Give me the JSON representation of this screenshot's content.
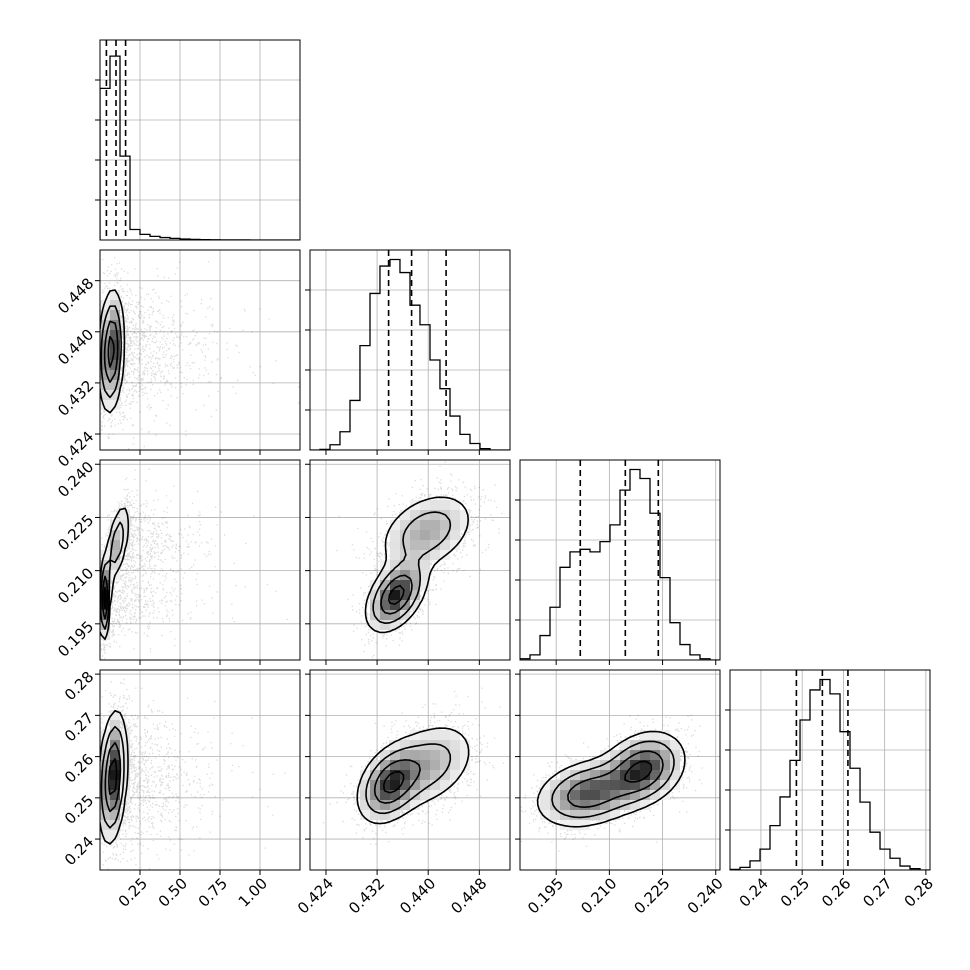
{
  "chart_data": {
    "type": "corner",
    "description_units": "parameter values in data units; no axis titles are printed",
    "params": [
      {
        "index": 0,
        "range": [
          0.0,
          1.25
        ],
        "ticks": [
          0.25,
          0.5,
          0.75,
          1.0
        ],
        "tick_labels": [
          "0.25",
          "0.50",
          "0.75",
          "1.00"
        ],
        "quantiles": [
          0.04,
          0.1,
          0.16
        ]
      },
      {
        "index": 1,
        "range": [
          0.4215,
          0.4528
        ],
        "ticks": [
          0.424,
          0.432,
          0.44,
          0.448
        ],
        "tick_labels": [
          "0.424",
          "0.432",
          "0.440",
          "0.448"
        ],
        "quantiles": [
          0.4338,
          0.4374,
          0.4428
        ]
      },
      {
        "index": 2,
        "range": [
          0.1848,
          0.2412
        ],
        "ticks": [
          0.195,
          0.21,
          0.225,
          0.24
        ],
        "tick_labels": [
          "0.195",
          "0.210",
          "0.225",
          "0.240"
        ],
        "quantiles": [
          0.2018,
          0.2145,
          0.2238
        ]
      },
      {
        "index": 3,
        "range": [
          0.2325,
          0.281
        ],
        "ticks": [
          0.24,
          0.25,
          0.26,
          0.27,
          0.28
        ],
        "tick_labels": [
          "0.24",
          "0.25",
          "0.26",
          "0.27",
          "0.28"
        ],
        "quantiles": [
          0.2486,
          0.2549,
          0.2611
        ]
      }
    ],
    "histograms": [
      {
        "param": 0,
        "bins": [
          0.0,
          0.0625,
          0.125,
          0.1875,
          0.25,
          0.3125,
          0.375,
          0.4375,
          0.5,
          0.5625,
          0.625,
          0.6875,
          0.75,
          0.8125,
          0.875,
          0.9375,
          1.0,
          1.0625,
          1.125,
          1.1875,
          1.25
        ],
        "counts": [
          1880,
          2280,
          1040,
          130,
          70,
          45,
          30,
          20,
          12,
          8,
          5,
          3,
          2,
          1,
          1,
          0,
          0,
          0,
          0,
          0
        ],
        "ylim": [
          0,
          2480
        ]
      },
      {
        "param": 1,
        "bins": [
          0.4215,
          0.42306,
          0.42463,
          0.42619,
          0.42776,
          0.42932,
          0.43089,
          0.43245,
          0.43402,
          0.43558,
          0.43715,
          0.43871,
          0.44028,
          0.44184,
          0.44341,
          0.44497,
          0.44654,
          0.4481,
          0.44967,
          0.45123,
          0.4528
        ],
        "counts": [
          0,
          5,
          40,
          140,
          380,
          800,
          1200,
          1410,
          1460,
          1360,
          1110,
          960,
          690,
          470,
          260,
          120,
          50,
          10,
          0,
          0
        ],
        "ylim": [
          0,
          1533
        ]
      },
      {
        "param": 2,
        "bins": [
          0.1848,
          0.18762,
          0.19044,
          0.19326,
          0.19608,
          0.1989,
          0.20172,
          0.20454,
          0.20736,
          0.21018,
          0.213,
          0.21582,
          0.21864,
          0.22146,
          0.22428,
          0.2271,
          0.22992,
          0.23274,
          0.23556,
          0.23838,
          0.2412
        ],
        "counts": [
          10,
          40,
          190,
          410,
          720,
          840,
          860,
          840,
          920,
          1050,
          1320,
          1480,
          1410,
          1140,
          640,
          290,
          120,
          40,
          10,
          0
        ],
        "ylim": [
          0,
          1554
        ]
      },
      {
        "param": 3,
        "bins": [
          0.2325,
          0.23493,
          0.23735,
          0.23978,
          0.2422,
          0.24463,
          0.24705,
          0.24948,
          0.2519,
          0.25433,
          0.25675,
          0.25918,
          0.2616,
          0.26403,
          0.26645,
          0.26888,
          0.2713,
          0.27373,
          0.27615,
          0.27858,
          0.281
        ],
        "counts": [
          5,
          20,
          70,
          160,
          340,
          560,
          840,
          1150,
          1380,
          1460,
          1350,
          1060,
          780,
          520,
          290,
          160,
          90,
          30,
          10,
          0
        ],
        "ylim": [
          0,
          1533
        ]
      }
    ],
    "correlations": [
      {
        "x": 0,
        "y": 1,
        "components": [
          {
            "mx": 0.07,
            "my": 0.437,
            "sx": 0.04,
            "sy": 0.0048,
            "rho": 0.15,
            "w": 1.0
          }
        ]
      },
      {
        "x": 0,
        "y": 2,
        "components": [
          {
            "mx": 0.03,
            "my": 0.202,
            "sx": 0.018,
            "sy": 0.006,
            "rho": 0.3,
            "w": 0.5
          },
          {
            "mx": 0.11,
            "my": 0.218,
            "sx": 0.04,
            "sy": 0.006,
            "rho": 0.55,
            "w": 0.5
          }
        ]
      },
      {
        "x": 0,
        "y": 3,
        "components": [
          {
            "mx": 0.08,
            "my": 0.255,
            "sx": 0.045,
            "sy": 0.008,
            "rho": 0.25,
            "w": 1.0
          }
        ]
      },
      {
        "x": 1,
        "y": 2,
        "components": [
          {
            "mx": 0.435,
            "my": 0.203,
            "sx": 0.0024,
            "sy": 0.0052,
            "rho": 0.45,
            "w": 0.5
          },
          {
            "mx": 0.4398,
            "my": 0.221,
            "sx": 0.004,
            "sy": 0.006,
            "rho": 0.35,
            "w": 0.5
          }
        ]
      },
      {
        "x": 1,
        "y": 3,
        "components": [
          {
            "mx": 0.434,
            "my": 0.2532,
            "sx": 0.0026,
            "sy": 0.0048,
            "rho": 0.35,
            "w": 0.5
          },
          {
            "mx": 0.44,
            "my": 0.258,
            "sx": 0.004,
            "sy": 0.0056,
            "rho": 0.35,
            "w": 0.5
          }
        ]
      },
      {
        "x": 2,
        "y": 3,
        "components": [
          {
            "mx": 0.204,
            "my": 0.251,
            "sx": 0.0075,
            "sy": 0.0042,
            "rho": 0.25,
            "w": 0.5
          },
          {
            "mx": 0.2195,
            "my": 0.257,
            "sx": 0.006,
            "sy": 0.0046,
            "rho": 0.25,
            "w": 0.5
          }
        ]
      }
    ],
    "contour_levels_sigma": [
      0.5,
      1.0,
      1.5,
      2.0
    ],
    "colors": {
      "line": "#000000",
      "grid": "#b0b0b0",
      "points": "#000000",
      "background": "#ffffff"
    },
    "grid": true,
    "legend": "none"
  }
}
